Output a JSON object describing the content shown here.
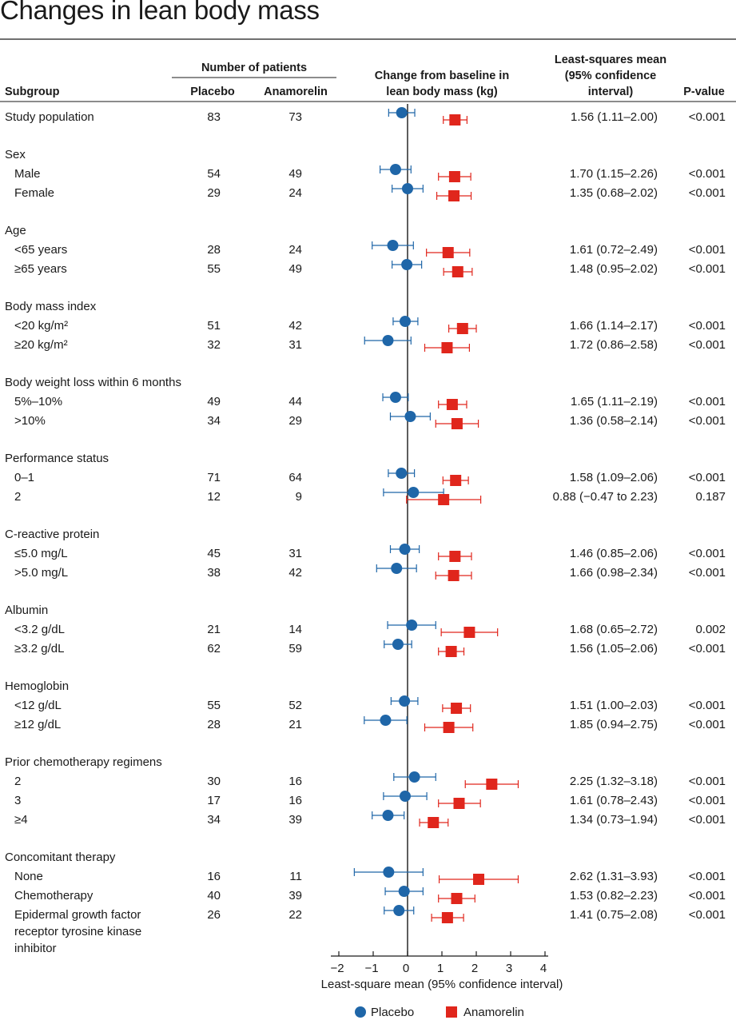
{
  "title": "Changes in lean body mass",
  "colors": {
    "placebo": "#1f66a8",
    "anamorelin": "#e0261c",
    "text": "#1a1a1a",
    "rule": "#1a1a1a"
  },
  "chart_data": {
    "type": "forest",
    "headers": {
      "subgroup": "Subgroup",
      "patients_group": "Number of patients",
      "placebo": "Placebo",
      "anamorelin": "Anamorelin",
      "change_l1": "Change from baseline in",
      "change_l2": "lean body mass (kg)",
      "lsm_l1": "Least-squares mean",
      "lsm_l2": "(95% confidence",
      "lsm_l3": "interval)",
      "pvalue": "P-value"
    },
    "xlabel": "Least-square mean (95% confidence interval)",
    "xlim": [
      -2,
      4
    ],
    "xticks": [
      "−2",
      "−1",
      "0",
      "1",
      "2",
      "3",
      "4"
    ],
    "legend": [
      {
        "name": "Placebo",
        "marker": "circle",
        "color": "#1f66a8"
      },
      {
        "name": "Anamorelin",
        "marker": "square",
        "color": "#e0261c"
      }
    ],
    "rows": [
      {
        "label": "Study population",
        "n_placebo": "83",
        "n_anamorelin": "73",
        "lsm": "1.56 (1.11–2.00)",
        "p": "<0.001",
        "placebo": {
          "mean": -0.17,
          "low": -0.55,
          "high": 0.21
        },
        "anamorelin": {
          "mean": 1.38,
          "low": 1.04,
          "high": 1.73
        }
      },
      {
        "label": "Sex",
        "group": true
      },
      {
        "label": "Male",
        "indent": true,
        "n_placebo": "54",
        "n_anamorelin": "49",
        "lsm": "1.70 (1.15–2.26)",
        "p": "<0.001",
        "placebo": {
          "mean": -0.35,
          "low": -0.8,
          "high": 0.1
        },
        "anamorelin": {
          "mean": 1.37,
          "low": 0.9,
          "high": 1.84
        }
      },
      {
        "label": "Female",
        "indent": true,
        "n_placebo": "29",
        "n_anamorelin": "24",
        "lsm": "1.35 (0.68–2.02)",
        "p": "<0.001",
        "placebo": {
          "mean": 0.0,
          "low": -0.45,
          "high": 0.45
        },
        "anamorelin": {
          "mean": 1.35,
          "low": 0.85,
          "high": 1.85
        }
      },
      {
        "label": "Age",
        "group": true
      },
      {
        "label": "<65 years",
        "indent": true,
        "n_placebo": "28",
        "n_anamorelin": "24",
        "lsm": "1.61 (0.72–2.49)",
        "p": "<0.001",
        "placebo": {
          "mean": -0.43,
          "low": -1.03,
          "high": 0.17
        },
        "anamorelin": {
          "mean": 1.18,
          "low": 0.55,
          "high": 1.81
        }
      },
      {
        "label": "≥65 years",
        "indent": true,
        "n_placebo": "55",
        "n_anamorelin": "49",
        "lsm": "1.48 (0.95–2.02)",
        "p": "<0.001",
        "placebo": {
          "mean": -0.02,
          "low": -0.45,
          "high": 0.41
        },
        "anamorelin": {
          "mean": 1.46,
          "low": 1.05,
          "high": 1.88
        }
      },
      {
        "label": "Body mass index",
        "group": true
      },
      {
        "label": "<20 kg/m²",
        "indent": true,
        "n_placebo": "51",
        "n_anamorelin": "42",
        "lsm": "1.66 (1.14–2.17)",
        "p": "<0.001",
        "placebo": {
          "mean": -0.07,
          "low": -0.42,
          "high": 0.3
        },
        "anamorelin": {
          "mean": 1.6,
          "low": 1.2,
          "high": 2.0
        }
      },
      {
        "label": "≥20 kg/m²",
        "indent": true,
        "n_placebo": "32",
        "n_anamorelin": "31",
        "lsm": "1.72 (0.86–2.58)",
        "p": "<0.001",
        "placebo": {
          "mean": -0.57,
          "low": -1.25,
          "high": 0.1
        },
        "anamorelin": {
          "mean": 1.15,
          "low": 0.5,
          "high": 1.8
        }
      },
      {
        "label": "Body weight loss within 6 months",
        "group": true
      },
      {
        "label": "5%–10%",
        "indent": true,
        "n_placebo": "49",
        "n_anamorelin": "44",
        "lsm": "1.65 (1.11–2.19)",
        "p": "<0.001",
        "placebo": {
          "mean": -0.35,
          "low": -0.72,
          "high": 0.02
        },
        "anamorelin": {
          "mean": 1.3,
          "low": 0.9,
          "high": 1.72
        }
      },
      {
        "label": ">10%",
        "indent": true,
        "n_placebo": "34",
        "n_anamorelin": "29",
        "lsm": "1.36 (0.58–2.14)",
        "p": "<0.001",
        "placebo": {
          "mean": 0.08,
          "low": -0.5,
          "high": 0.66
        },
        "anamorelin": {
          "mean": 1.44,
          "low": 0.82,
          "high": 2.06
        }
      },
      {
        "label": "Performance status",
        "group": true
      },
      {
        "label": "0–1",
        "indent": true,
        "n_placebo": "71",
        "n_anamorelin": "64",
        "lsm": "1.58 (1.09–2.06)",
        "p": "<0.001",
        "placebo": {
          "mean": -0.18,
          "low": -0.56,
          "high": 0.2
        },
        "anamorelin": {
          "mean": 1.4,
          "low": 1.03,
          "high": 1.77
        }
      },
      {
        "label": "2",
        "indent": true,
        "n_placebo": "12",
        "n_anamorelin": "9",
        "lsm": "0.88 (−0.47 to 2.23)",
        "p": "0.187",
        "placebo": {
          "mean": 0.17,
          "low": -0.7,
          "high": 1.05
        },
        "anamorelin": {
          "mean": 1.05,
          "low": -0.03,
          "high": 2.13
        }
      },
      {
        "label": "C-reactive protein",
        "group": true
      },
      {
        "label": "≤5.0 mg/L",
        "indent": true,
        "n_placebo": "45",
        "n_anamorelin": "31",
        "lsm": "1.46 (0.85–2.06)",
        "p": "<0.001",
        "placebo": {
          "mean": -0.08,
          "low": -0.5,
          "high": 0.34
        },
        "anamorelin": {
          "mean": 1.38,
          "low": 0.9,
          "high": 1.86
        }
      },
      {
        "label": ">5.0 mg/L",
        "indent": true,
        "n_placebo": "38",
        "n_anamorelin": "42",
        "lsm": "1.66 (0.98–2.34)",
        "p": "<0.001",
        "placebo": {
          "mean": -0.32,
          "low": -0.9,
          "high": 0.26
        },
        "anamorelin": {
          "mean": 1.34,
          "low": 0.82,
          "high": 1.86
        }
      },
      {
        "label": "Albumin",
        "group": true
      },
      {
        "label": "<3.2 g/dL",
        "indent": true,
        "n_placebo": "21",
        "n_anamorelin": "14",
        "lsm": "1.68 (0.65–2.72)",
        "p": "0.002",
        "placebo": {
          "mean": 0.12,
          "low": -0.58,
          "high": 0.82
        },
        "anamorelin": {
          "mean": 1.8,
          "low": 0.98,
          "high": 2.62
        }
      },
      {
        "label": "≥3.2 g/dL",
        "indent": true,
        "n_placebo": "62",
        "n_anamorelin": "59",
        "lsm": "1.56 (1.05–2.06)",
        "p": "<0.001",
        "placebo": {
          "mean": -0.28,
          "low": -0.68,
          "high": 0.12
        },
        "anamorelin": {
          "mean": 1.27,
          "low": 0.9,
          "high": 1.64
        }
      },
      {
        "label": "Hemoglobin",
        "group": true
      },
      {
        "label": "<12 g/dL",
        "indent": true,
        "n_placebo": "55",
        "n_anamorelin": "52",
        "lsm": "1.51 (1.00–2.03)",
        "p": "<0.001",
        "placebo": {
          "mean": -0.09,
          "low": -0.48,
          "high": 0.3
        },
        "anamorelin": {
          "mean": 1.42,
          "low": 1.02,
          "high": 1.83
        }
      },
      {
        "label": "≥12 g/dL",
        "indent": true,
        "n_placebo": "28",
        "n_anamorelin": "21",
        "lsm": "1.85 (0.94–2.75)",
        "p": "<0.001",
        "placebo": {
          "mean": -0.64,
          "low": -1.26,
          "high": -0.02
        },
        "anamorelin": {
          "mean": 1.2,
          "low": 0.5,
          "high": 1.9
        }
      },
      {
        "label": "Prior chemotherapy regimens",
        "group": true
      },
      {
        "label": "2",
        "indent": true,
        "n_placebo": "30",
        "n_anamorelin": "16",
        "lsm": "2.25 (1.32–3.18)",
        "p": "<0.001",
        "placebo": {
          "mean": 0.2,
          "low": -0.4,
          "high": 0.82
        },
        "anamorelin": {
          "mean": 2.45,
          "low": 1.68,
          "high": 3.22
        }
      },
      {
        "label": "3",
        "indent": true,
        "n_placebo": "17",
        "n_anamorelin": "16",
        "lsm": "1.61 (0.78–2.43)",
        "p": "<0.001",
        "placebo": {
          "mean": -0.07,
          "low": -0.7,
          "high": 0.56
        },
        "anamorelin": {
          "mean": 1.5,
          "low": 0.9,
          "high": 2.12
        }
      },
      {
        "label": "≥4",
        "indent": true,
        "n_placebo": "34",
        "n_anamorelin": "39",
        "lsm": "1.34 (0.73–1.94)",
        "p": "<0.001",
        "placebo": {
          "mean": -0.57,
          "low": -1.03,
          "high": -0.1
        },
        "anamorelin": {
          "mean": 0.75,
          "low": 0.35,
          "high": 1.18
        }
      },
      {
        "label": "Concomitant therapy",
        "group": true
      },
      {
        "label": "None",
        "indent": true,
        "n_placebo": "16",
        "n_anamorelin": "11",
        "lsm": "2.62 (1.31–3.93)",
        "p": "<0.001",
        "placebo": {
          "mean": -0.55,
          "low": -1.55,
          "high": 0.45
        },
        "anamorelin": {
          "mean": 2.07,
          "low": 0.92,
          "high": 3.22
        }
      },
      {
        "label": "Chemotherapy",
        "indent": true,
        "n_placebo": "40",
        "n_anamorelin": "39",
        "lsm": "1.53 (0.82–2.23)",
        "p": "<0.001",
        "placebo": {
          "mean": -0.1,
          "low": -0.65,
          "high": 0.45
        },
        "anamorelin": {
          "mean": 1.43,
          "low": 0.9,
          "high": 1.96
        }
      },
      {
        "label": "Epidermal growth factor receptor tyrosine kinase inhibitor",
        "indent": true,
        "wrap": true,
        "n_placebo": "26",
        "n_anamorelin": "22",
        "lsm": "1.41 (0.75–2.08)",
        "p": "<0.001",
        "placebo": {
          "mean": -0.25,
          "low": -0.68,
          "high": 0.18
        },
        "anamorelin": {
          "mean": 1.16,
          "low": 0.7,
          "high": 1.63
        }
      }
    ]
  }
}
